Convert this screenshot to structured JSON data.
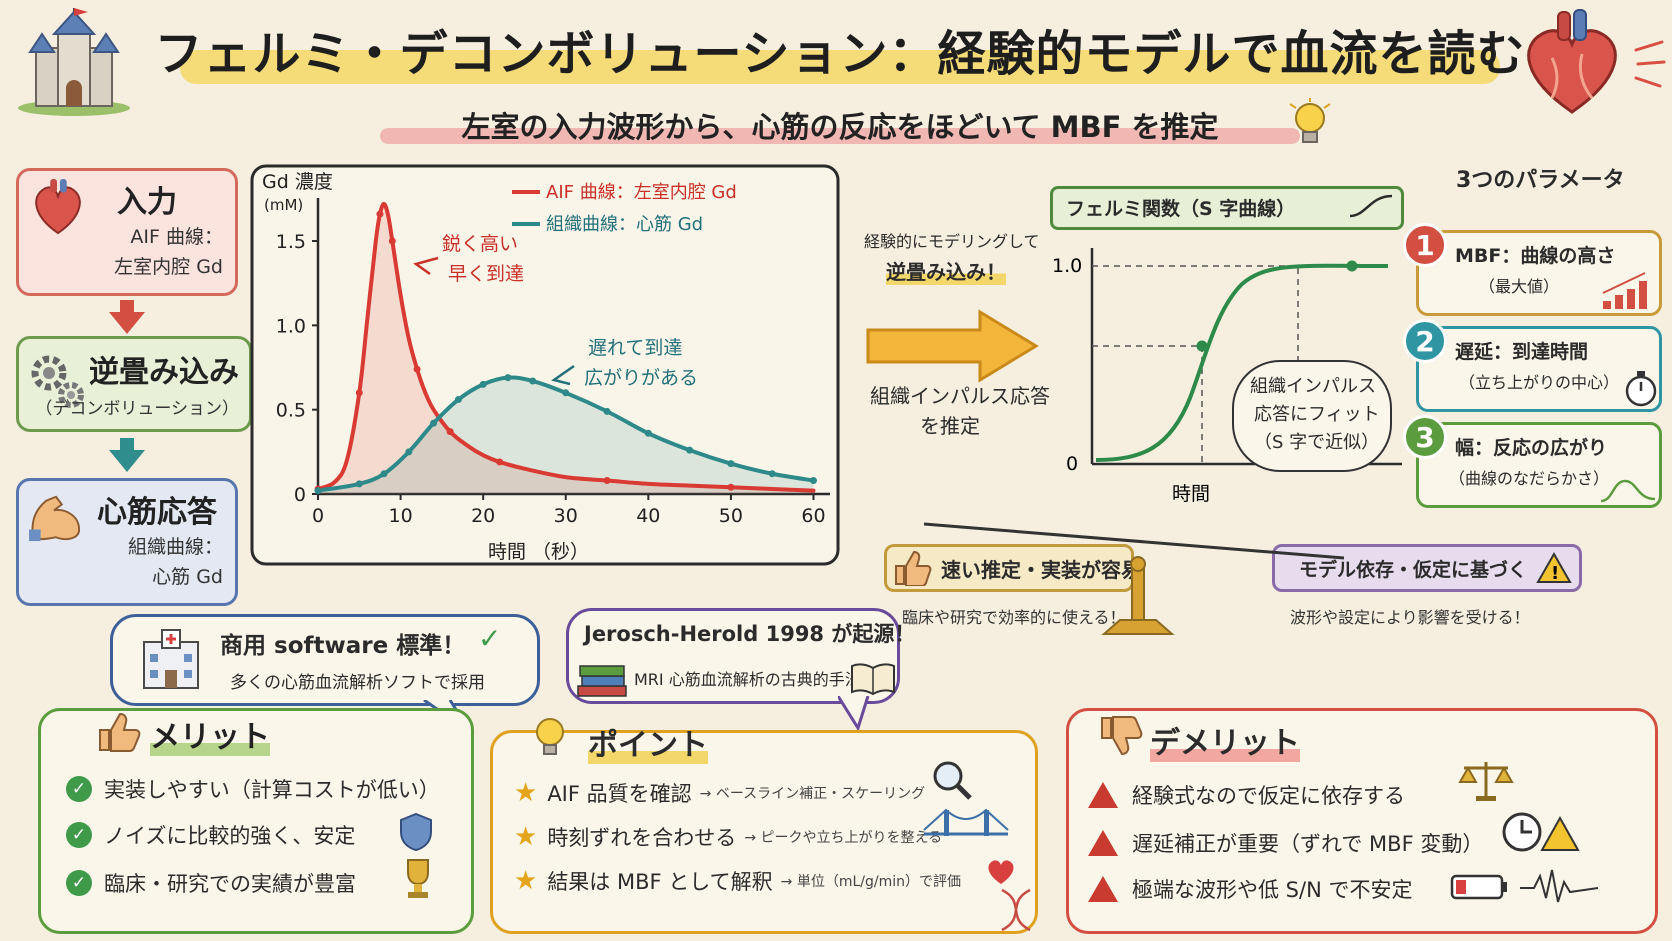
{
  "header": {
    "title": "フェルミ・デコンボリューション：経験的モデルで血流を読む",
    "subtitle": "左室の入力波形から、心筋の反応をほどいて MBF を推定"
  },
  "flow": {
    "input": {
      "title": "入力",
      "line1": "AIF 曲線：",
      "line2": "左室内腔 Gd"
    },
    "deconv": {
      "title": "逆畳み込み",
      "sub": "（デコンボリューション）"
    },
    "response": {
      "title": "心筋応答",
      "line1": "組織曲線：",
      "line2": "心筋 Gd"
    }
  },
  "chart_data": {
    "type": "line",
    "xlabel": "時間 （秒）",
    "ylabel_line1": "Gd 濃度",
    "ylabel_line2": "(mM)",
    "xlim": [
      0,
      62
    ],
    "ylim": [
      0,
      1.85
    ],
    "x_ticks": [
      "0",
      "10",
      "20",
      "30",
      "40",
      "50",
      "60"
    ],
    "y_ticks": [
      "0",
      "0.5",
      "1.0",
      "1.5"
    ],
    "legend_position": "top-right",
    "series": [
      {
        "name": "AIF 曲線：左室内腔 Gd",
        "color": "#d93a33",
        "x": [
          0,
          2,
          3.5,
          5,
          6,
          7,
          7.5,
          8,
          8.5,
          9,
          10,
          11,
          12,
          13,
          14,
          16,
          18,
          20,
          22,
          25,
          30,
          35,
          40,
          45,
          50,
          55,
          60
        ],
        "y": [
          0.03,
          0.07,
          0.2,
          0.6,
          1.05,
          1.5,
          1.66,
          1.72,
          1.65,
          1.5,
          1.18,
          0.92,
          0.74,
          0.6,
          0.5,
          0.37,
          0.29,
          0.23,
          0.19,
          0.15,
          0.1,
          0.08,
          0.06,
          0.05,
          0.04,
          0.03,
          0.02
        ]
      },
      {
        "name": "組織曲線：心筋 Gd",
        "color": "#2e8a8a",
        "x": [
          0,
          5,
          8,
          11,
          14,
          17,
          20,
          23,
          26,
          30,
          35,
          40,
          45,
          50,
          55,
          60
        ],
        "y": [
          0.02,
          0.06,
          0.12,
          0.25,
          0.42,
          0.56,
          0.65,
          0.69,
          0.67,
          0.6,
          0.49,
          0.36,
          0.26,
          0.18,
          0.12,
          0.08
        ]
      }
    ],
    "annotations": [
      {
        "text1": "鋭く高い",
        "text2": "早く到達"
      },
      {
        "text1": "遅れて到達",
        "text2": "広がりがある"
      }
    ]
  },
  "middle": {
    "top1": "経験的にモデリングして",
    "top2": "逆畳み込み！",
    "bottom1": "組織インパルス応答",
    "bottom2": "を推定"
  },
  "fermi": {
    "title": "フェルミ関数（S 字曲線）",
    "y_top": "1.0",
    "y_zero": "0",
    "xlabel": "時間",
    "bubble1": "組織インパルス",
    "bubble2": "応答にフィット",
    "bubble3": "（S 字で近似）"
  },
  "params": {
    "title": "3つのパラメータ",
    "items": [
      {
        "num": "1",
        "title": "MBF：曲線の高さ",
        "desc": "（最大値）",
        "color": "#d24f42"
      },
      {
        "num": "2",
        "title": "遅延：到達時間",
        "desc": "（立ち上がりの中心）",
        "color": "#2f95a3"
      },
      {
        "num": "3",
        "title": "幅：反応の広がり",
        "desc": "（曲線のなだらかさ）",
        "color": "#5a9c3e"
      }
    ]
  },
  "balance": {
    "left_label": "速い推定・実装が容易",
    "left_caption": "臨床や研究で効率的に使える！",
    "right_label": "モデル依存・仮定に基づく",
    "right_caption": "波形や設定により影響を受ける！"
  },
  "bubbles": {
    "software_title": "商用 software 標準！",
    "software_desc": "多くの心筋血流解析ソフトで採用",
    "origin_title": "Jerosch-Herold 1998 が起源！",
    "origin_desc": "MRI 心筋血流解析の古典的手法"
  },
  "merits": {
    "title": "メリット",
    "items": [
      "実装しやすい（計算コストが低い）",
      "ノイズに比較的強く、安定",
      "臨床・研究での実績が豊富"
    ]
  },
  "points": {
    "title": "ポイント",
    "items": [
      {
        "main": "AIF 品質を確認",
        "note": "→ ベースライン補正・スケーリング"
      },
      {
        "main": "時刻ずれを合わせる",
        "note": "→ ピークや立ち上がりを整える"
      },
      {
        "main": "結果は MBF として解釈",
        "note": "→ 単位（mL/g/min）で評価"
      }
    ]
  },
  "demerits": {
    "title": "デメリット",
    "items": [
      "経験式なので仮定に依存する",
      "遅延補正が重要（ずれで MBF 変動）",
      "極端な波形や低 S/N で不安定"
    ]
  }
}
